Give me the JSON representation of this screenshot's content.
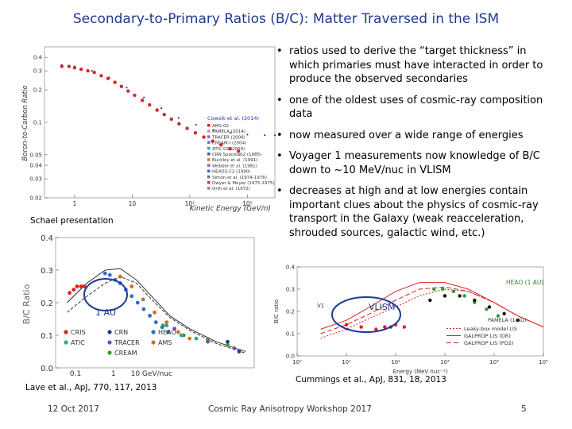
{
  "title": "Secondary-to-Primary Ratios (B/C):  Matter Traversed in the ISM",
  "bullets": [
    "ratios used to derive the “target thickness” in which primaries must have interacted in order to produce the observed secondaries",
    "one of the oldest uses of cosmic-ray composition data",
    "now measured over a wide range of energies",
    "Voyager 1 measurements now knowledge of B/C down to ~10 MeV/nuc in VLISM",
    "decreases at high and at low energies contain important clues about the physics of cosmic-ray transport in the Galaxy (weak reacceleration, shrouded sources, galactic wind, etc.)"
  ],
  "bullet_char": "•",
  "sources": {
    "schael": "Schael presentation",
    "lave": "Lave et al., ApJ, 770, 117, 2013",
    "cummings": "Cummings et al., ApJ, 831, 18, 2013"
  },
  "footer": {
    "date": "12 Oct 2017",
    "workshop": "Cosmic Ray Anisotropy Workshop 2017",
    "page": "5"
  },
  "colors": {
    "title": "#1f3a93",
    "ams": "#d62728",
    "model": "#2233cc",
    "circle": "#1f3a93",
    "cris": "#e0201c",
    "crn": "#1f3a93",
    "heao": "#2a6bd1",
    "tracer": "#6b4fbf",
    "ace": "#d36f1a",
    "cream": "#2ca02c",
    "galprop": "#d62728"
  },
  "chart_data": [
    {
      "type": "scatter",
      "title": "",
      "ylabel": "Boron-to-Carbon Ratio",
      "xlabel": "Kinetic Energy (GeV/n)",
      "xscale": "log",
      "yscale": "log",
      "xlim": [
        0.3,
        3000
      ],
      "ylim": [
        0.02,
        0.5
      ],
      "yticks": [
        0.4,
        0.3,
        0.2,
        0.1,
        0.05,
        0.04,
        0.03,
        0.02
      ],
      "ytick_labels": [
        "0.4",
        "0.3",
        "0.2",
        "0.1",
        "0.05",
        "0.04",
        "0.03",
        "0.02"
      ],
      "xticks": [
        1,
        10,
        100,
        1000
      ],
      "xtick_labels": [
        "1",
        "10",
        "10²",
        "10³"
      ],
      "legend": [
        "AMS-02",
        "PAMELA (2014)",
        "TRACER (2008)",
        "CREAM-I (2004)",
        "ATIC-02 (2009)",
        "CRN Spacelab2 (1985)",
        "Buckley et al. (1991)",
        "Webber et al. (1981)",
        "HEAO3-C2 (1990)",
        "Simon et al. (1974-1976)",
        "Dwyer & Meyer (1975-1975)",
        "Orth et al. (1972)"
      ],
      "legend_position": "lower-left",
      "annotation": "Cowsik et al. (2014)",
      "series": [
        {
          "name": "AMS-02",
          "x": [
            0.6,
            0.8,
            1.0,
            1.3,
            1.7,
            2.2,
            2.9,
            3.8,
            5.0,
            6.5,
            8.5,
            11,
            15,
            20,
            27,
            36,
            48,
            65,
            90,
            125,
            175,
            250,
            350,
            500,
            700
          ],
          "y": [
            0.33,
            0.33,
            0.32,
            0.31,
            0.3,
            0.29,
            0.27,
            0.255,
            0.235,
            0.215,
            0.195,
            0.178,
            0.16,
            0.145,
            0.13,
            0.118,
            0.107,
            0.097,
            0.088,
            0.08,
            0.073,
            0.067,
            0.062,
            0.057,
            0.054
          ]
        },
        {
          "name": "Cowsik et al. (2014)",
          "x": [
            0.6,
            1,
            2,
            4,
            8,
            16,
            32,
            64,
            128,
            256,
            512,
            1000,
            2000,
            3000
          ],
          "y": [
            0.34,
            0.33,
            0.3,
            0.26,
            0.21,
            0.17,
            0.135,
            0.11,
            0.095,
            0.085,
            0.08,
            0.077,
            0.076,
            0.076
          ]
        }
      ]
    },
    {
      "type": "scatter",
      "title": "",
      "ylabel": "B/C Ratio",
      "xlabel": "",
      "xscale": "log",
      "xlim": [
        0.03,
        5000
      ],
      "ylim": [
        0.0,
        0.4
      ],
      "xticks": [
        0.1,
        1,
        10
      ],
      "xtick_labels": [
        "0.1",
        "1",
        "10 GeV/nuc"
      ],
      "yticks": [
        0.0,
        0.1,
        0.2,
        0.3,
        0.4
      ],
      "ytick_labels": [
        "0.0",
        "0.1",
        "0.2",
        "0.3",
        "0.4"
      ],
      "annotation": "1 AU",
      "legend": [
        "CRIS",
        "CRN",
        "HEAO",
        "ATIC",
        "TRACER",
        "AMS",
        "CREAM"
      ],
      "legend_position": "lower-left",
      "series": [
        {
          "name": "CRIS",
          "x": [
            0.07,
            0.09,
            0.11,
            0.14,
            0.17
          ],
          "y": [
            0.23,
            0.24,
            0.25,
            0.25,
            0.25
          ]
        },
        {
          "name": "HEAO",
          "x": [
            0.6,
            0.8,
            1.1,
            1.5,
            2.1,
            3,
            4.3,
            6.2,
            9,
            13,
            19,
            27
          ],
          "y": [
            0.29,
            0.285,
            0.27,
            0.26,
            0.24,
            0.22,
            0.2,
            0.18,
            0.16,
            0.14,
            0.125,
            0.11
          ]
        },
        {
          "name": "AMS",
          "x": [
            1.5,
            3,
            6,
            12,
            25,
            50,
            100
          ],
          "y": [
            0.28,
            0.25,
            0.21,
            0.17,
            0.14,
            0.11,
            0.09
          ]
        },
        {
          "name": "CREAM",
          "x": [
            20,
            70,
            300,
            1000
          ],
          "y": [
            0.13,
            0.1,
            0.085,
            0.07
          ]
        },
        {
          "name": "ATIC",
          "x": [
            25,
            60,
            150
          ],
          "y": [
            0.13,
            0.1,
            0.09
          ]
        },
        {
          "name": "TRACER",
          "x": [
            40,
            300,
            1500
          ],
          "y": [
            0.12,
            0.08,
            0.06
          ]
        },
        {
          "name": "CRN",
          "x": [
            1000,
            2000
          ],
          "y": [
            0.08,
            0.05
          ]
        }
      ]
    },
    {
      "type": "scatter",
      "title": "",
      "ylabel": "B/C ratio",
      "xlabel": "Energy (MeV nuc⁻¹)",
      "xscale": "log",
      "xlim": [
        1,
        100000
      ],
      "ylim": [
        0.0,
        0.4
      ],
      "xticks": [
        1,
        10,
        100,
        1000,
        10000,
        100000
      ],
      "xtick_labels": [
        "10⁰",
        "10¹",
        "10²",
        "10³",
        "10⁴",
        "10⁵"
      ],
      "yticks": [
        0.0,
        0.1,
        0.2,
        0.3,
        0.4
      ],
      "ytick_labels": [
        "0.0",
        "0.1",
        "0.2",
        "0.3",
        "0.4"
      ],
      "annotations": [
        "VLISM",
        "V1",
        "HEAO (1 AU)",
        "PAMELA (1 AU)"
      ],
      "legend": [
        "Leaky-box model LIS",
        "GALPROP LIS (DR)",
        "GALPROP LIS (PD2)"
      ],
      "legend_position": "lower-right",
      "series": [
        {
          "name": "V1",
          "x": [
            10,
            20,
            40,
            60,
            80,
            100,
            150
          ],
          "y": [
            0.14,
            0.13,
            0.12,
            0.13,
            0.13,
            0.14,
            0.13
          ]
        },
        {
          "name": "HEAO (1 AU)",
          "x": [
            600,
            900,
            1500,
            2500,
            4000,
            7000,
            12000
          ],
          "y": [
            0.3,
            0.3,
            0.29,
            0.27,
            0.24,
            0.21,
            0.18
          ]
        },
        {
          "name": "PAMELA (1 AU)",
          "x": [
            500,
            1000,
            2000,
            4000,
            8000,
            16000,
            30000
          ],
          "y": [
            0.25,
            0.27,
            0.27,
            0.25,
            0.22,
            0.19,
            0.16
          ]
        },
        {
          "name": "Leaky-box model LIS",
          "x": [
            3,
            10,
            30,
            100,
            300,
            1000,
            3000,
            10000,
            30000,
            100000
          ],
          "y": [
            0.08,
            0.12,
            0.17,
            0.22,
            0.27,
            0.3,
            0.29,
            0.24,
            0.18,
            0.13
          ]
        },
        {
          "name": "GALPROP LIS (DR)",
          "x": [
            3,
            10,
            30,
            100,
            300,
            1000,
            3000,
            10000,
            30000,
            100000
          ],
          "y": [
            0.12,
            0.16,
            0.22,
            0.29,
            0.33,
            0.33,
            0.3,
            0.24,
            0.18,
            0.13
          ]
        },
        {
          "name": "GALPROP LIS (PD2)",
          "x": [
            3,
            10,
            30,
            100,
            300,
            1000,
            3000,
            10000,
            30000,
            100000
          ],
          "y": [
            0.1,
            0.14,
            0.19,
            0.25,
            0.3,
            0.31,
            0.29,
            0.24,
            0.18,
            0.13
          ]
        }
      ]
    }
  ]
}
